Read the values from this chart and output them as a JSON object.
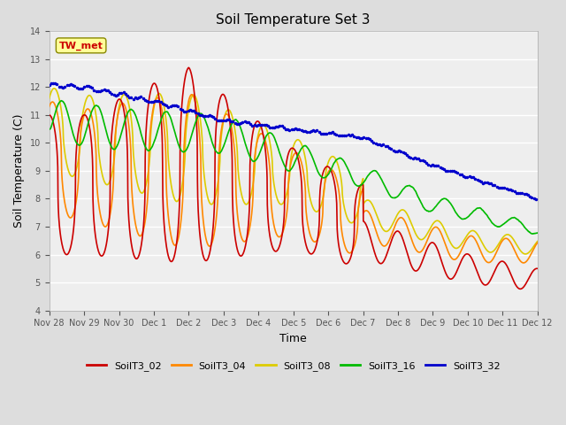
{
  "title": "Soil Temperature Set 3",
  "xlabel": "Time",
  "ylabel": "Soil Temperature (C)",
  "ylim": [
    4.0,
    14.0
  ],
  "yticks": [
    4.0,
    5.0,
    6.0,
    7.0,
    8.0,
    9.0,
    10.0,
    11.0,
    12.0,
    13.0,
    14.0
  ],
  "xtick_labels": [
    "Nov 28",
    "Nov 29",
    "Nov 30",
    "Dec 1",
    "Dec 2",
    "Dec 3",
    "Dec 4",
    "Dec 5",
    "Dec 6",
    "Dec 7",
    "Dec 8",
    "Dec 9",
    "Dec 10",
    "Dec 11",
    "Dec 12"
  ],
  "annotation_text": "TW_met",
  "annotation_color": "#cc0000",
  "annotation_bg": "#ffff99",
  "series": {
    "SoilT3_02": {
      "color": "#cc0000",
      "linewidth": 1.2
    },
    "SoilT3_04": {
      "color": "#ff8800",
      "linewidth": 1.2
    },
    "SoilT3_08": {
      "color": "#ddcc00",
      "linewidth": 1.2
    },
    "SoilT3_16": {
      "color": "#00bb00",
      "linewidth": 1.2
    },
    "SoilT3_32": {
      "color": "#0000cc",
      "linewidth": 1.2
    }
  },
  "bg_color": "#dddddd",
  "plot_bg_color": "#eeeeee"
}
